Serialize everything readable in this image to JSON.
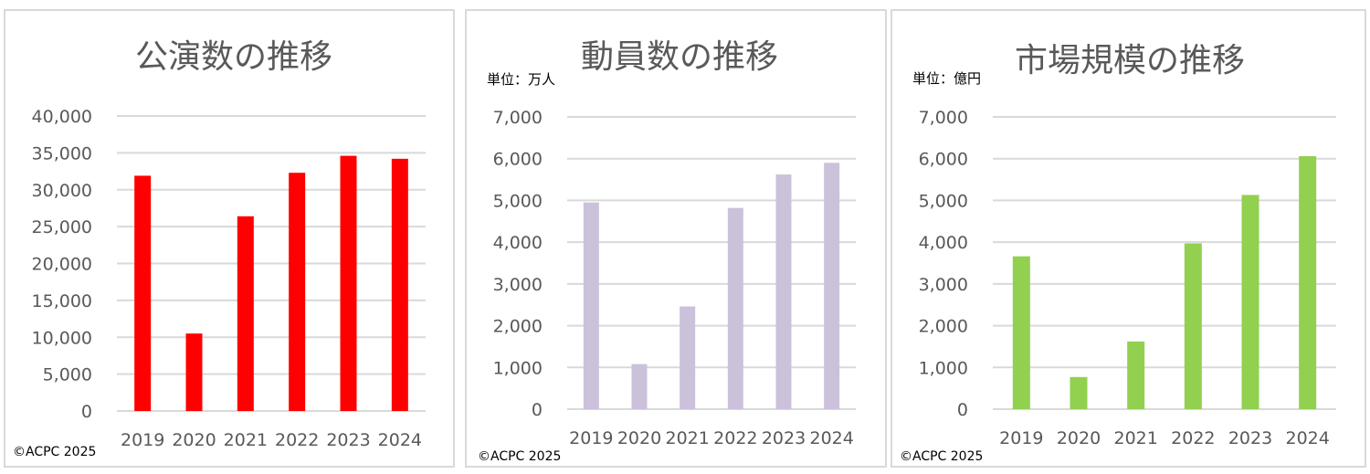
{
  "copyright": "©ACPC 2025",
  "chart_data": [
    {
      "type": "bar",
      "title": "公演数の推移",
      "unit": "",
      "categories": [
        "2019",
        "2020",
        "2021",
        "2022",
        "2023",
        "2024"
      ],
      "values": [
        31900,
        10500,
        26400,
        32300,
        34600,
        34200
      ],
      "ylim": [
        0,
        40000
      ],
      "yticks": [
        0,
        5000,
        10000,
        15000,
        20000,
        25000,
        30000,
        35000,
        40000
      ],
      "ytick_labels": [
        "0",
        "5,000",
        "10,000",
        "15,000",
        "20,000",
        "25,000",
        "30,000",
        "35,000",
        "40,000"
      ],
      "grid": true,
      "color": "#ff0000"
    },
    {
      "type": "bar",
      "title": "動員数の推移",
      "unit": "単位：万人",
      "categories": [
        "2019",
        "2020",
        "2021",
        "2022",
        "2023",
        "2024"
      ],
      "values": [
        4950,
        1080,
        2460,
        4820,
        5620,
        5900
      ],
      "ylim": [
        0,
        7000
      ],
      "yticks": [
        0,
        1000,
        2000,
        3000,
        4000,
        5000,
        6000,
        7000
      ],
      "ytick_labels": [
        "0",
        "1,000",
        "2,000",
        "3,000",
        "4,000",
        "5,000",
        "6,000",
        "7,000"
      ],
      "grid": true,
      "color": "#ccc1da"
    },
    {
      "type": "bar",
      "title": "市場規模の推移",
      "unit": "単位：億円",
      "categories": [
        "2019",
        "2020",
        "2021",
        "2022",
        "2023",
        "2024"
      ],
      "values": [
        3660,
        770,
        1620,
        3970,
        5130,
        6060
      ],
      "ylim": [
        0,
        7000
      ],
      "yticks": [
        0,
        1000,
        2000,
        3000,
        4000,
        5000,
        6000,
        7000
      ],
      "ytick_labels": [
        "0",
        "1,000",
        "2,000",
        "3,000",
        "4,000",
        "5,000",
        "6,000",
        "7,000"
      ],
      "grid": true,
      "color": "#92d050"
    }
  ]
}
